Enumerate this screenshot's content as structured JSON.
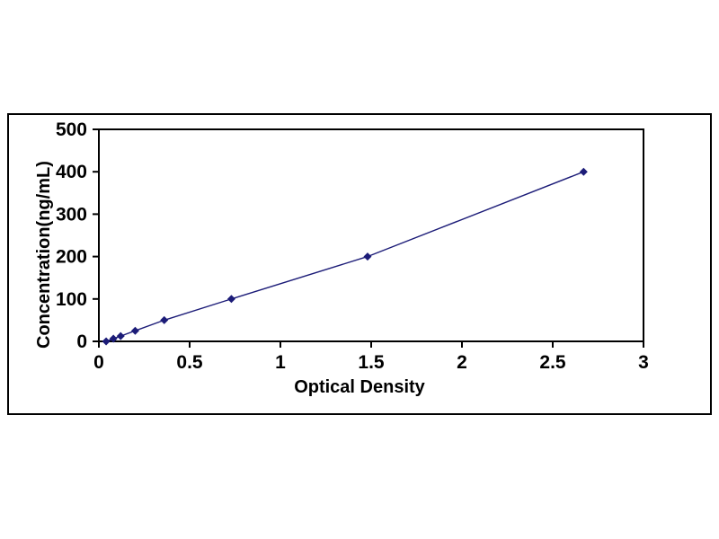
{
  "chart_data": {
    "type": "line",
    "title": "",
    "xlabel": "Optical Density",
    "ylabel": "Concentration(ng/mL)",
    "x": [
      0.04,
      0.08,
      0.12,
      0.2,
      0.36,
      0.73,
      1.48,
      2.67
    ],
    "y": [
      0,
      6.25,
      12.5,
      25,
      50,
      100,
      200,
      400
    ],
    "xlim": [
      0,
      3
    ],
    "ylim": [
      0,
      500
    ],
    "xtick_values": [
      0,
      0.5,
      1,
      1.5,
      2,
      2.5,
      3
    ],
    "xtick_labels": [
      "0",
      "0.5",
      "1",
      "1.5",
      "2",
      "2.5",
      "3"
    ],
    "ytick_values": [
      0,
      100,
      200,
      300,
      400,
      500
    ],
    "ytick_labels": [
      "0",
      "100",
      "200",
      "300",
      "400",
      "500"
    ],
    "grid": false,
    "legend_position": "none",
    "marker": "diamond",
    "colors": {
      "line": "#1c1c78",
      "marker": "#1c1c78",
      "axis": "#000000",
      "background": "#ffffff"
    }
  }
}
